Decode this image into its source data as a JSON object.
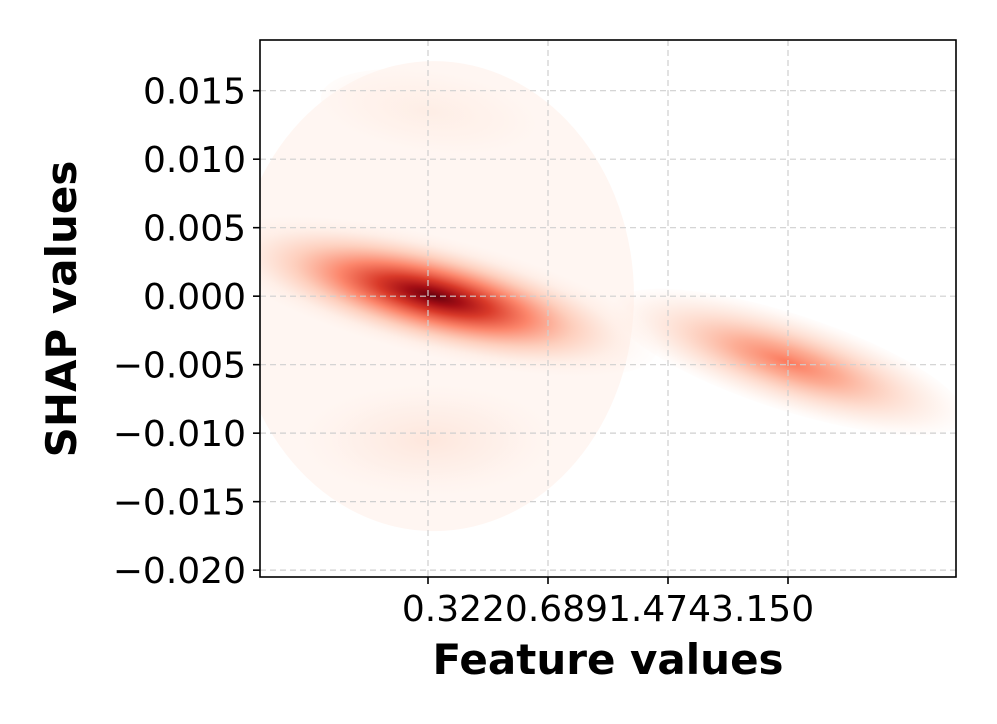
{
  "chart_data": {
    "type": "heatmap",
    "subtype": "kde-density",
    "colormap": "Reds",
    "xlabel": "Feature values",
    "ylabel": "SHAP values",
    "x_tick_labels": [
      "0.322",
      "0.689",
      "1.474",
      "3.150"
    ],
    "y_ticks": [
      0.015,
      0.01,
      0.005,
      0.0,
      -0.005,
      -0.01,
      -0.015,
      -0.02
    ],
    "y_tick_labels": [
      "0.015",
      "0.010",
      "0.005",
      "0.000",
      "−0.005",
      "−0.010",
      "−0.015",
      "−0.020"
    ],
    "ylim": [
      -0.0205,
      0.0187
    ],
    "grid": true,
    "density_clusters": [
      {
        "x_index": 0.05,
        "y": 0.0,
        "peak": 1.0
      },
      {
        "x_index": 3.0,
        "y": -0.0048,
        "peak": 0.35
      },
      {
        "x_index": 0.0,
        "y": -0.0105,
        "peak": 0.08
      },
      {
        "x_index": 0.0,
        "y": 0.0135,
        "peak": 0.05
      }
    ]
  }
}
